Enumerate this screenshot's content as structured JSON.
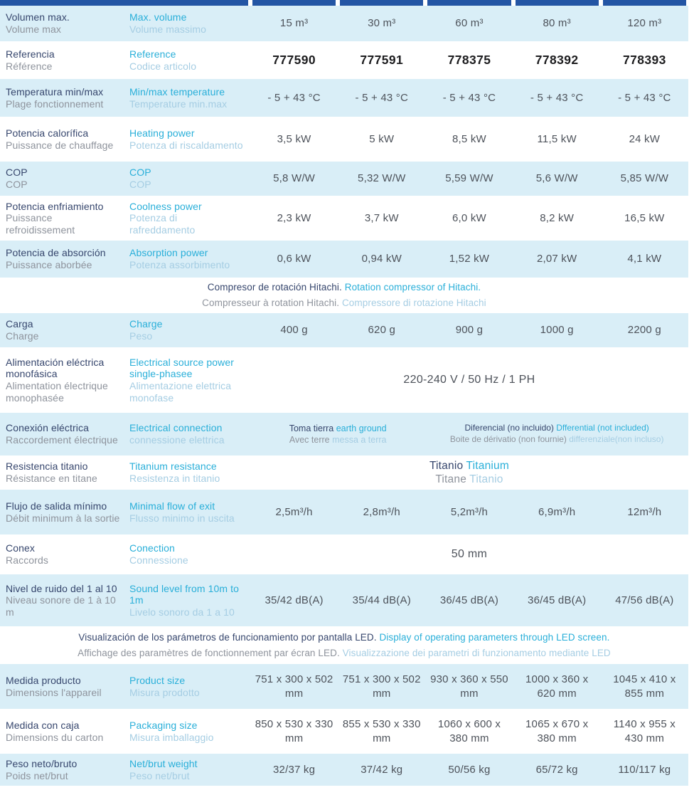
{
  "palette": {
    "bar": "#2355a4",
    "rowblue": "#d9eef7",
    "dark": "#36466d",
    "gray": "#8e939c",
    "cyan": "#29afd9",
    "lightblue": "#a5cde3",
    "value": "#4d525a",
    "ref": "#1d1d1f"
  },
  "rows": [
    {
      "id": "volume",
      "kind": "spec",
      "shaded": true,
      "es": "Volumen max.",
      "fr": "Volume max",
      "en": "Max. volume",
      "it": "Volume massimo",
      "values": [
        "15 m³",
        "30 m³",
        "60 m³",
        "80 m³",
        "120 m³"
      ]
    },
    {
      "id": "reference",
      "kind": "spec",
      "shaded": false,
      "ref": true,
      "es": "Referencia",
      "fr": "Référence",
      "en": "Reference",
      "it": "Codice articolo",
      "values": [
        "777590",
        "777591",
        "778375",
        "778392",
        "778393"
      ]
    },
    {
      "id": "temperature",
      "kind": "spec",
      "shaded": true,
      "es": "Temperatura min/max",
      "fr": "Plage fonctionnement",
      "en": "Min/max temperature",
      "it": "Temperature min.max",
      "values": [
        "- 5 + 43 °C",
        "- 5 + 43 °C",
        "- 5 + 43 °C",
        "- 5 + 43 °C",
        "- 5 + 43 °C"
      ]
    },
    {
      "id": "heating",
      "kind": "spec",
      "shaded": false,
      "es": "Potencia calorífica",
      "fr": "Puissance de chauffage",
      "en": "Heating power",
      "it": "Potenza di riscaldamento",
      "values": [
        "3,5 kW",
        "5 kW",
        "8,5 kW",
        "11,5 kW",
        "24 kW"
      ]
    },
    {
      "id": "cop",
      "kind": "spec",
      "shaded": true,
      "es": "COP",
      "fr": "COP",
      "en": "COP",
      "it": "COP",
      "values": [
        "5,8 W/W",
        "5,32 W/W",
        "5,59 W/W",
        "5,6 W/W",
        "5,85 W/W"
      ]
    },
    {
      "id": "cooling",
      "kind": "spec",
      "shaded": false,
      "es": "Potencia enfriamiento",
      "fr": "Puissance refroidissement",
      "en": "Coolness power",
      "it": "Potenza di rafreddamento",
      "values": [
        "2,3 kW",
        "3,7 kW",
        "6,0 kW",
        "8,2 kW",
        "16,5 kW"
      ]
    },
    {
      "id": "absorption",
      "kind": "spec",
      "shaded": true,
      "es": "Potencia de absorción",
      "fr": "Puissance aborbée",
      "en": "Absorption power",
      "it": "Potenza assorbimento",
      "values": [
        "0,6 kW",
        "0,94 kW",
        "1,52 kW",
        "2,07 kW",
        "4,1 kW"
      ]
    },
    {
      "id": "note-compressor",
      "kind": "note",
      "shaded": false,
      "lines": [
        [
          {
            "t": "Compresor de rotación Hitachi. ",
            "c": "dark"
          },
          {
            "t": "Rotation compressor of Hitachi.",
            "c": "cyan"
          }
        ],
        [
          {
            "t": "Compresseur à rotation Hitachi. ",
            "c": "gray"
          },
          {
            "t": "Compressore di rotazione Hitachi",
            "c": "lightblue"
          }
        ]
      ]
    },
    {
      "id": "charge",
      "kind": "spec",
      "shaded": true,
      "es": "Carga",
      "fr": "Charge",
      "en": "Charge",
      "it": "Peso",
      "values": [
        "400 g",
        "620 g",
        "900 g",
        "1000 g",
        "2200 g"
      ]
    },
    {
      "id": "power-supply",
      "kind": "span",
      "shaded": false,
      "es": "Alimentación eléctrica monofásica",
      "fr": "Alimentation électrique monophasée",
      "en": "Electrical source power single-phasee",
      "it": "Alimentazione elettrica monofase",
      "value": "220-240 V / 50 Hz / 1 PH"
    },
    {
      "id": "connection",
      "kind": "span2",
      "shaded": true,
      "es": "Conexión eléctrica",
      "fr": "Raccordement électrique",
      "en": "Electrical connection",
      "it": "connessione elettrica",
      "cellA": [
        [
          {
            "t": "Toma tierra ",
            "c": "dark"
          },
          {
            "t": "earth ground",
            "c": "cyan"
          }
        ],
        [
          {
            "t": "Avec terre ",
            "c": "gray"
          },
          {
            "t": "messa a terra",
            "c": "lightblue"
          }
        ]
      ],
      "cellB": [
        [
          {
            "t": "Diferencial (no incluido) ",
            "c": "dark"
          },
          {
            "t": "Dfferential (not included)",
            "c": "cyan"
          }
        ],
        [
          {
            "t": "Boite de dérivatio (non fournie)  ",
            "c": "gray"
          },
          {
            "t": "differenziale(non incluso)",
            "c": "lightblue"
          }
        ]
      ]
    },
    {
      "id": "titanium",
      "kind": "spanrich",
      "shaded": false,
      "es": "Resistencia titanio",
      "fr": "Résistance en titane",
      "en": "Titanium resistance",
      "it": "Resistenza in titanio",
      "lines": [
        [
          {
            "t": "Titanio ",
            "c": "dark"
          },
          {
            "t": "Titanium",
            "c": "cyan"
          }
        ],
        [
          {
            "t": "Titane ",
            "c": "gray"
          },
          {
            "t": "Titanio",
            "c": "lightblue"
          }
        ]
      ]
    },
    {
      "id": "flow",
      "kind": "spec",
      "shaded": true,
      "es": "Flujo de salida mínimo",
      "fr": "Débit minimum à la sortie",
      "en": "Minimal flow of exit",
      "it": "Flusso minimo in uscita",
      "values": [
        "2,5m³/h",
        "2,8m³/h",
        "5,2m³/h",
        "6,9m³/h",
        "12m³/h"
      ]
    },
    {
      "id": "conex",
      "kind": "span",
      "shaded": false,
      "es": "Conex",
      "fr": "Raccords",
      "en": "Conection",
      "it": "Connessione",
      "value": "50 mm"
    },
    {
      "id": "sound",
      "kind": "spec",
      "shaded": true,
      "es": "Nivel de ruido del 1 al 10",
      "fr": "Niveau sonore de 1 à 10 m",
      "en": "Sound level from 10m to 1m",
      "it": "Livelo sonoro da 1 a 10",
      "values": [
        "35/42 dB(A)",
        "35/44 dB(A)",
        "36/45 dB(A)",
        "36/45 dB(A)",
        "47/56 dB(A)"
      ]
    },
    {
      "id": "note-led",
      "kind": "note",
      "shaded": false,
      "lines": [
        [
          {
            "t": "Visualización de los parámetros de funcionamiento por pantalla LED. ",
            "c": "dark"
          },
          {
            "t": "Display of operating parameters through LED screen.",
            "c": "cyan"
          }
        ],
        [
          {
            "t": "Affichage des paramètres de fonctionnement par écran LED. ",
            "c": "gray"
          },
          {
            "t": "Visualizzazione dei parametri di funzionamento mediante LED",
            "c": "lightblue"
          }
        ]
      ]
    },
    {
      "id": "product-size",
      "kind": "spec",
      "shaded": true,
      "es": "Medida producto",
      "fr": "Dimensions l'appareil",
      "en": "Product size",
      "it": "Misura prodotto",
      "values": [
        "751 x 300 x 502 mm",
        "751 x 300 x 502 mm",
        "930 x 360 x 550 mm",
        "1000 x 360 x 620 mm",
        "1045 x 410 x 855 mm"
      ]
    },
    {
      "id": "packaging-size",
      "kind": "spec",
      "shaded": false,
      "es": "Medida con caja",
      "fr": "Dimensions du carton",
      "en": "Packaging size",
      "it": "Misura imballaggio",
      "values": [
        "850 x 530 x 330 mm",
        "855 x 530 x 330 mm",
        "1060 x 600 x 380 mm",
        "1065 x 670 x 380 mm",
        "1140 x 955 x 430 mm"
      ]
    },
    {
      "id": "weight",
      "kind": "spec",
      "shaded": true,
      "es": "Peso neto/bruto",
      "fr": "Poids net/brut",
      "en": "Net/brut weight",
      "it": "Peso net/brut",
      "values": [
        "32/37 kg",
        "37/42 kg",
        "50/56 kg",
        "65/72 kg",
        "110/117 kg"
      ]
    }
  ]
}
